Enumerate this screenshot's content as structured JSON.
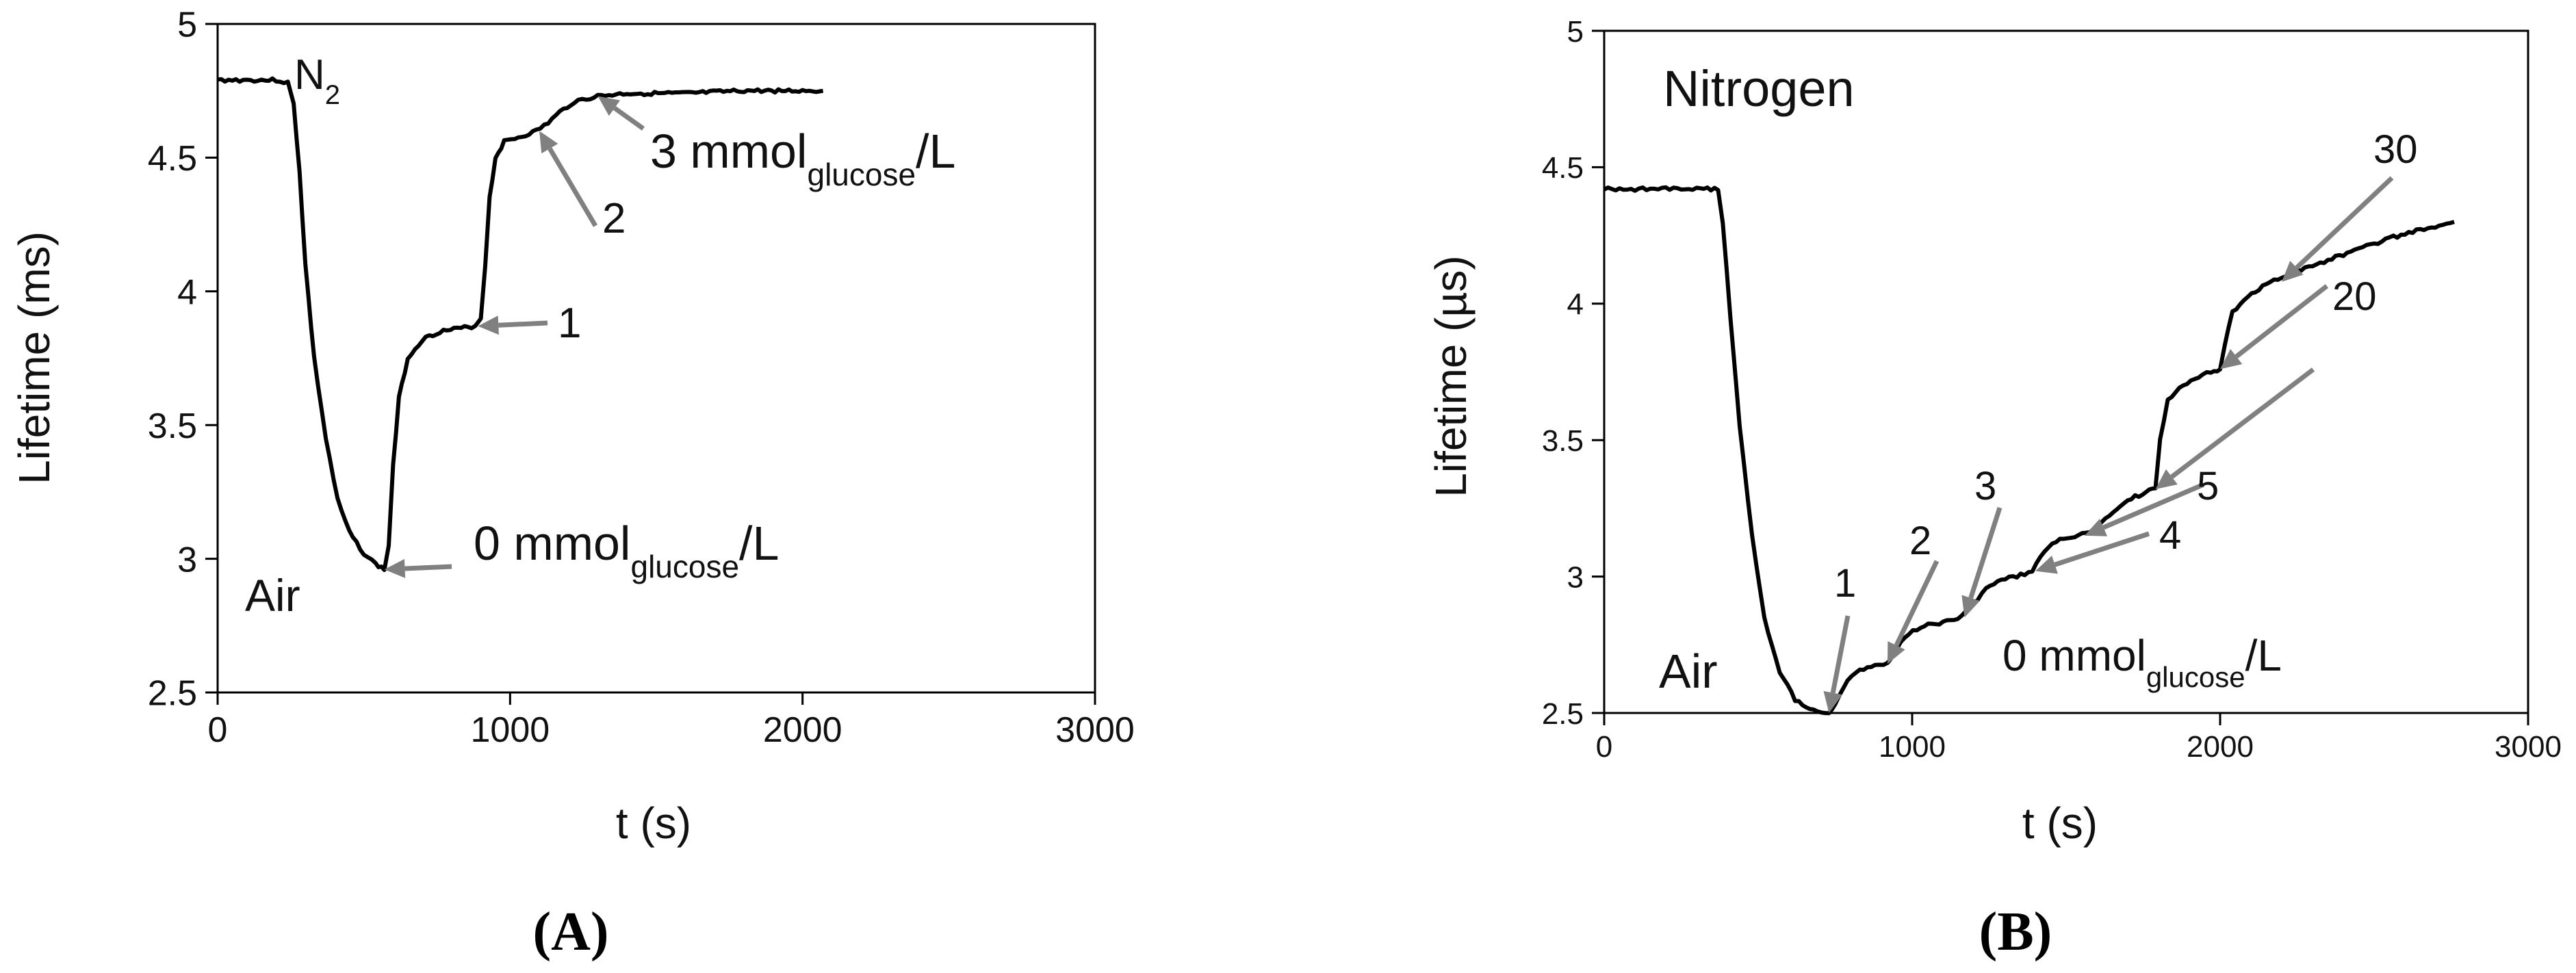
{
  "chart_data": [
    {
      "type": "line",
      "panel": "A",
      "panel_label": "(A)",
      "xlabel": "t (s)",
      "ylabel": "Lifetime (ms)",
      "xlim": [
        0,
        3000
      ],
      "ylim": [
        2.5,
        5
      ],
      "x_ticks": [
        "0",
        "1000",
        "2000",
        "3000"
      ],
      "y_ticks": [
        "2.5",
        "3",
        "3.5",
        "4",
        "4.5",
        "5"
      ],
      "series": [
        {
          "points": [
            [
              0,
              4.79
            ],
            [
              100,
              4.79
            ],
            [
              200,
              4.79
            ],
            [
              240,
              4.78
            ],
            [
              260,
              4.7
            ],
            [
              280,
              4.45
            ],
            [
              300,
              4.1
            ],
            [
              330,
              3.75
            ],
            [
              370,
              3.45
            ],
            [
              410,
              3.22
            ],
            [
              450,
              3.1
            ],
            [
              500,
              3.02
            ],
            [
              540,
              2.98
            ],
            [
              570,
              2.96
            ],
            [
              585,
              3.05
            ],
            [
              600,
              3.35
            ],
            [
              620,
              3.6
            ],
            [
              650,
              3.75
            ],
            [
              700,
              3.82
            ],
            [
              760,
              3.85
            ],
            [
              820,
              3.86
            ],
            [
              880,
              3.87
            ],
            [
              900,
              3.9
            ],
            [
              915,
              4.1
            ],
            [
              930,
              4.35
            ],
            [
              950,
              4.5
            ],
            [
              980,
              4.56
            ],
            [
              1040,
              4.58
            ],
            [
              1090,
              4.6
            ],
            [
              1130,
              4.63
            ],
            [
              1170,
              4.67
            ],
            [
              1220,
              4.71
            ],
            [
              1260,
              4.72
            ],
            [
              1300,
              4.73
            ],
            [
              1400,
              4.74
            ],
            [
              1600,
              4.74
            ],
            [
              1800,
              4.75
            ],
            [
              2000,
              4.75
            ],
            [
              2070,
              4.75
            ]
          ]
        }
      ],
      "annotations": [
        {
          "main": "N",
          "sub": "2",
          "tail": ""
        },
        {
          "main": "Air",
          "sub": "",
          "tail": ""
        },
        {
          "main": "0 mmol",
          "sub": "glucose",
          "tail": "/L",
          "arrow_to": [
            570,
            2.96
          ]
        },
        {
          "main": "1",
          "sub": "",
          "tail": "",
          "arrow_to": [
            890,
            3.87
          ]
        },
        {
          "main": "2",
          "sub": "",
          "tail": "",
          "arrow_to": [
            1100,
            4.6
          ]
        },
        {
          "main": "3 mmol",
          "sub": "glucose",
          "tail": "/L",
          "arrow_to": [
            1300,
            4.73
          ]
        }
      ]
    },
    {
      "type": "line",
      "panel": "B",
      "panel_label": "(B)",
      "xlabel": "t (s)",
      "ylabel": "Lifetime (µs)",
      "xlim": [
        0,
        3000
      ],
      "ylim": [
        2.5,
        5
      ],
      "x_ticks": [
        "0",
        "1000",
        "2000",
        "3000"
      ],
      "y_ticks": [
        "2.5",
        "3",
        "3.5",
        "4",
        "4.5",
        "5"
      ],
      "series": [
        {
          "points": [
            [
              0,
              4.42
            ],
            [
              100,
              4.42
            ],
            [
              200,
              4.42
            ],
            [
              300,
              4.42
            ],
            [
              370,
              4.42
            ],
            [
              385,
              4.3
            ],
            [
              410,
              3.95
            ],
            [
              440,
              3.55
            ],
            [
              480,
              3.15
            ],
            [
              520,
              2.85
            ],
            [
              570,
              2.65
            ],
            [
              620,
              2.55
            ],
            [
              680,
              2.51
            ],
            [
              730,
              2.5
            ],
            [
              760,
              2.55
            ],
            [
              790,
              2.62
            ],
            [
              830,
              2.66
            ],
            [
              880,
              2.67
            ],
            [
              920,
              2.68
            ],
            [
              950,
              2.74
            ],
            [
              990,
              2.79
            ],
            [
              1040,
              2.82
            ],
            [
              1100,
              2.83
            ],
            [
              1160,
              2.85
            ],
            [
              1200,
              2.9
            ],
            [
              1240,
              2.96
            ],
            [
              1290,
              2.99
            ],
            [
              1340,
              3.0
            ],
            [
              1390,
              3.02
            ],
            [
              1430,
              3.09
            ],
            [
              1480,
              3.14
            ],
            [
              1540,
              3.15
            ],
            [
              1590,
              3.17
            ],
            [
              1640,
              3.22
            ],
            [
              1700,
              3.28
            ],
            [
              1760,
              3.31
            ],
            [
              1790,
              3.32
            ],
            [
              1805,
              3.5
            ],
            [
              1830,
              3.65
            ],
            [
              1880,
              3.7
            ],
            [
              1930,
              3.73
            ],
            [
              1970,
              3.75
            ],
            [
              2000,
              3.76
            ],
            [
              2015,
              3.85
            ],
            [
              2040,
              3.97
            ],
            [
              2090,
              4.03
            ],
            [
              2150,
              4.07
            ],
            [
              2250,
              4.12
            ],
            [
              2350,
              4.16
            ],
            [
              2450,
              4.2
            ],
            [
              2550,
              4.24
            ],
            [
              2650,
              4.27
            ],
            [
              2760,
              4.3
            ]
          ]
        }
      ],
      "annotations": [
        {
          "main": "Nitrogen",
          "sub": "",
          "tail": ""
        },
        {
          "main": "Air",
          "sub": "",
          "tail": ""
        },
        {
          "main": "0 mmol",
          "sub": "glucose",
          "tail": "/L",
          "arrow_to": [
            730,
            2.5
          ]
        },
        {
          "main": "1",
          "sub": "",
          "tail": "",
          "arrow_to": [
            920,
            2.68
          ]
        },
        {
          "main": "2",
          "sub": "",
          "tail": "",
          "arrow_to": [
            1170,
            2.85
          ]
        },
        {
          "main": "3",
          "sub": "",
          "tail": "",
          "arrow_to": [
            1400,
            3.02
          ]
        },
        {
          "main": "4",
          "sub": "",
          "tail": "",
          "arrow_to": [
            1560,
            3.15
          ]
        },
        {
          "main": "5",
          "sub": "",
          "tail": "",
          "arrow_to": [
            1790,
            3.32
          ]
        },
        {
          "main": "",
          "sub": "",
          "tail": "",
          "arrow_to": [
            2000,
            3.76
          ]
        },
        {
          "main": "20",
          "sub": "",
          "tail": "",
          "arrow_to": [
            2200,
            4.08
          ]
        },
        {
          "main": "30",
          "sub": "",
          "tail": "",
          "arrow_to": [
            2560,
            4.25
          ]
        }
      ]
    }
  ]
}
